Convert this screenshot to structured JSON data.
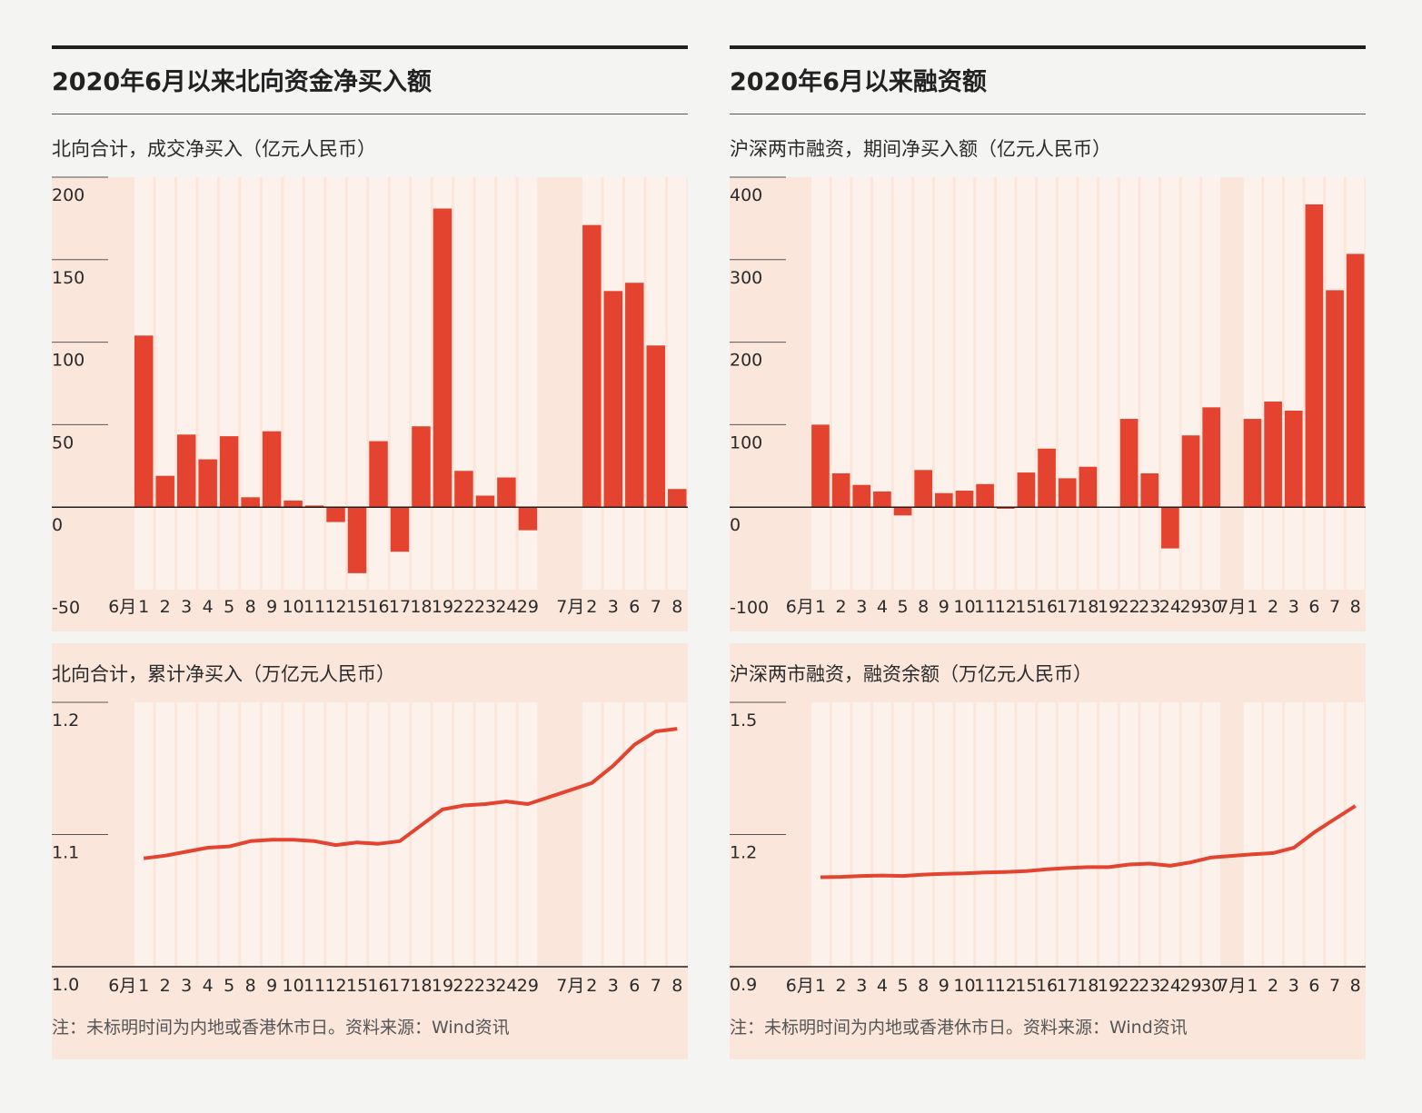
{
  "colors": {
    "bar": "#e3432f",
    "line": "#e3432f",
    "nonTradingBg": "#fbe6dc",
    "tradingStripe": "#fdf1ec",
    "axis": "#1f1f1f"
  },
  "left": {
    "title": "2020年6月以来北向资金净买入额",
    "sub1": "北向合计，成交净买入（亿元人民币）",
    "sub2": "北向合计，累计净买入（万亿元人民币）",
    "note": "注：未标明时间为内地或香港休市日。资料来源：Wind资讯"
  },
  "right": {
    "title": "2020年6月以来融资额",
    "sub1": "沪深两市融资，期间净买入额（亿元人民币）",
    "sub2": "沪深两市融资，融资余额（万亿元人民币）",
    "note": "注：未标明时间为内地或香港休市日。资料来源：Wind资讯"
  },
  "chart_data": [
    {
      "type": "bar",
      "title": "北向合计，成交净买入（亿元人民币）",
      "ylim": [
        -50,
        200
      ],
      "yticks": [
        "200",
        "150",
        "100",
        "50",
        "0",
        "-50"
      ],
      "categories": [
        "6月",
        "1",
        "2",
        "3",
        "4",
        "5",
        "8",
        "9",
        "10",
        "11",
        "12",
        "15",
        "16",
        "17",
        "18",
        "19",
        "22",
        "23",
        "24",
        "29",
        "",
        "7月",
        "2",
        "3",
        "6",
        "7",
        "8"
      ],
      "values": [
        null,
        104,
        19,
        44,
        29,
        43,
        6,
        46,
        4,
        1,
        -9,
        -40,
        40,
        -27,
        49,
        181,
        22,
        7,
        18,
        -14,
        null,
        null,
        171,
        131,
        136,
        98,
        11
      ],
      "grid": true
    },
    {
      "type": "line",
      "title": "北向合计，累计净买入（万亿元人民币）",
      "ylim": [
        1.0,
        1.2
      ],
      "yticks": [
        "1.2",
        "1.1",
        "1.0"
      ],
      "categories": [
        "6月",
        "1",
        "2",
        "3",
        "4",
        "5",
        "8",
        "9",
        "10",
        "11",
        "12",
        "15",
        "16",
        "17",
        "18",
        "19",
        "22",
        "23",
        "24",
        "29",
        "",
        "7月",
        "2",
        "3",
        "6",
        "7",
        "8"
      ],
      "values": [
        null,
        1.082,
        1.084,
        1.087,
        1.09,
        1.091,
        1.095,
        1.096,
        1.096,
        1.095,
        1.092,
        1.094,
        1.093,
        1.095,
        1.107,
        1.119,
        1.122,
        1.123,
        1.125,
        1.123,
        null,
        null,
        1.139,
        1.152,
        1.168,
        1.178,
        1.18
      ],
      "grid": true
    },
    {
      "type": "bar",
      "title": "沪深两市融资，期间净买入额（亿元人民币）",
      "ylim": [
        -100,
        400
      ],
      "yticks": [
        "400",
        "300",
        "200",
        "100",
        "0",
        "-100"
      ],
      "categories": [
        "6月",
        "1",
        "2",
        "3",
        "4",
        "5",
        "8",
        "9",
        "10",
        "11",
        "12",
        "15",
        "16",
        "17",
        "18",
        "19",
        "22",
        "23",
        "24",
        "29",
        "30",
        "7月",
        "1",
        "2",
        "3",
        "6",
        "7",
        "8"
      ],
      "values": [
        null,
        100,
        41,
        27,
        19,
        -10,
        45,
        17,
        20,
        28,
        -2,
        42,
        71,
        35,
        49,
        0,
        107,
        41,
        -50,
        87,
        121,
        null,
        107,
        128,
        117,
        367,
        263,
        307
      ],
      "grid": true
    },
    {
      "type": "line",
      "title": "沪深两市融资，融资余额（万亿元人民币）",
      "ylim": [
        0.9,
        1.5
      ],
      "yticks": [
        "1.5",
        "1.2",
        "0.9"
      ],
      "categories": [
        "6月",
        "1",
        "2",
        "3",
        "4",
        "5",
        "8",
        "9",
        "10",
        "11",
        "12",
        "15",
        "16",
        "17",
        "18",
        "19",
        "22",
        "23",
        "24",
        "29",
        "30",
        "7月",
        "1",
        "2",
        "3",
        "6",
        "7",
        "8"
      ],
      "values": [
        null,
        1.103,
        1.104,
        1.106,
        1.107,
        1.106,
        1.109,
        1.111,
        1.112,
        1.114,
        1.115,
        1.117,
        1.121,
        1.124,
        1.126,
        1.126,
        1.132,
        1.134,
        1.129,
        1.137,
        1.148,
        null,
        1.155,
        1.158,
        1.17,
        1.205,
        1.235,
        1.265
      ],
      "grid": true
    }
  ]
}
